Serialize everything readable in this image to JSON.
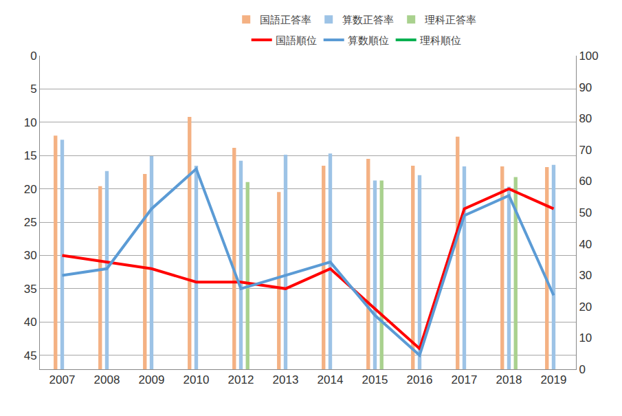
{
  "chart_data": {
    "type": "bar",
    "categories": [
      "2007",
      "2008",
      "2009",
      "2010",
      "2012",
      "2013",
      "2014",
      "2015",
      "2016",
      "2017",
      "2018",
      "2019"
    ],
    "ylim": [
      47.1,
      0
    ],
    "yticks": [
      0,
      5,
      10,
      15,
      20,
      25,
      30,
      35,
      40,
      45
    ],
    "y2lim": [
      0,
      100
    ],
    "y2ticks": [
      0,
      10,
      20,
      30,
      40,
      50,
      60,
      70,
      80,
      90,
      100
    ],
    "grid": true,
    "legend": "top",
    "series": [
      {
        "name": "国語正答率",
        "type": "bar",
        "axis": "y2",
        "color": "#F4B183",
        "values": [
          74.5,
          58.4,
          62.3,
          80.5,
          70.6,
          56.5,
          64.9,
          67.1,
          64.9,
          74.2,
          64.7,
          64.5
        ]
      },
      {
        "name": "算数正答率",
        "type": "bar",
        "axis": "y2",
        "color": "#9DC3E6",
        "values": [
          73.2,
          63.2,
          68.0,
          64.9,
          66.5,
          68.4,
          68.8,
          60.2,
          61.9,
          64.7,
          58.2,
          65.2
        ]
      },
      {
        "name": "理科正答率",
        "type": "bar",
        "axis": "y2",
        "color": "#A9D18E",
        "values": [
          null,
          null,
          null,
          null,
          59.7,
          null,
          null,
          60.2,
          null,
          null,
          61.3,
          null
        ]
      },
      {
        "name": "国語順位",
        "type": "line",
        "color": "#FF0000",
        "values": [
          30,
          31,
          32,
          34,
          34,
          35,
          32,
          38,
          44,
          23,
          20,
          23
        ]
      },
      {
        "name": "算数順位",
        "type": "line",
        "color": "#5B9BD5",
        "values": [
          33,
          32,
          23,
          17,
          35,
          33,
          31,
          39,
          45,
          24,
          21,
          36
        ]
      },
      {
        "name": "理科順位",
        "type": "line",
        "color": "#00B050",
        "values": [
          null,
          null,
          null,
          null,
          null,
          null,
          null,
          null,
          null,
          null,
          null,
          null
        ]
      }
    ]
  }
}
